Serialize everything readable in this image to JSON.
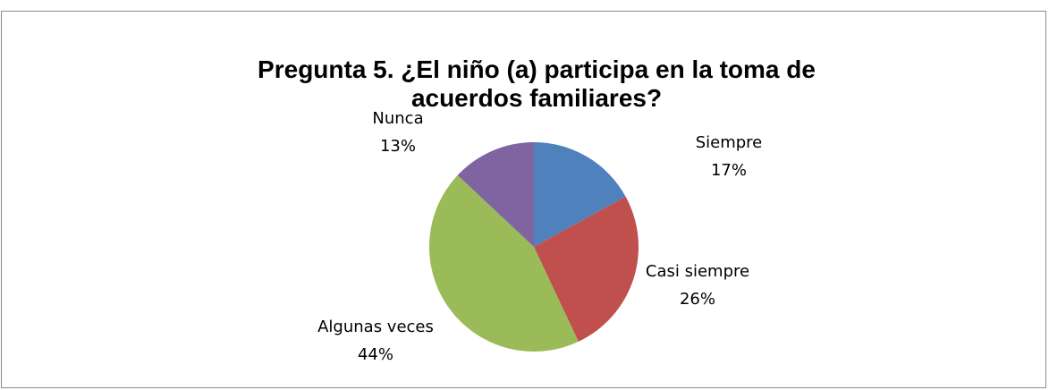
{
  "chart_data": {
    "type": "pie",
    "title": "Pregunta 5. ¿El niño (a) participa en la toma de acuerdos familiares?",
    "categories": [
      "Siempre",
      "Casi siempre",
      "Algunas veces",
      "Nunca"
    ],
    "values": [
      17,
      26,
      44,
      13
    ],
    "value_labels": [
      "17%",
      "26%",
      "44%",
      "13%"
    ],
    "colors": [
      "#4f81bd",
      "#c0504d",
      "#9bbb59",
      "#8064a2"
    ]
  }
}
